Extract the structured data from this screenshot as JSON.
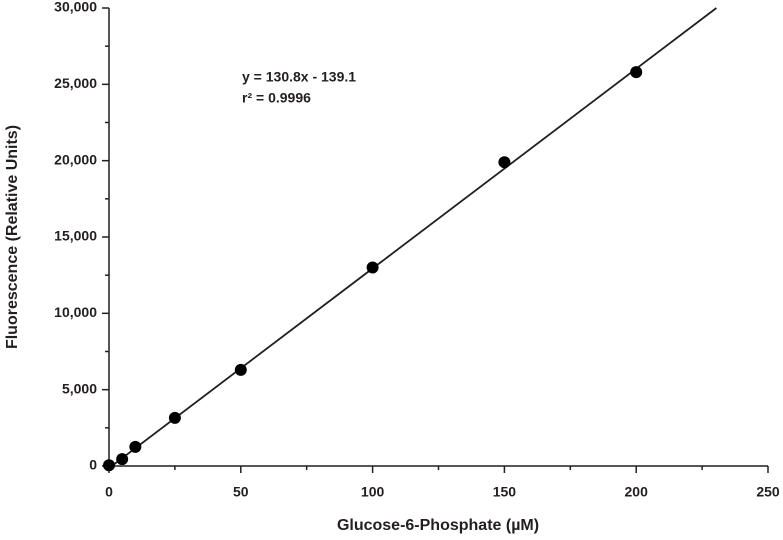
{
  "chart_data": {
    "type": "scatter",
    "x_label": "Glucose-6-Phosphate (µM)",
    "y_label": "Fluorescence (Relative Units)",
    "annotations": [
      "y = 130.8x - 139.1",
      "r² = 0.9996"
    ],
    "x": [
      0,
      5,
      10,
      25,
      50,
      100,
      150,
      200
    ],
    "values": [
      50,
      450,
      1250,
      3150,
      6300,
      13000,
      19900,
      25800
    ],
    "color": "#000000",
    "fit": {
      "slope": 130.8,
      "intercept": -139.1
    },
    "xlim": [
      0,
      250
    ],
    "xticks": [
      0,
      50,
      100,
      150,
      200,
      250
    ],
    "ylim": [
      0,
      30000
    ],
    "yticks": [
      0,
      {
        "value": 5000,
        "label": "5,000"
      },
      {
        "value": 10000,
        "label": "10,000"
      },
      {
        "value": 15000,
        "label": "15,000"
      },
      {
        "value": 20000,
        "label": "20,000"
      },
      {
        "value": 25000,
        "label": "25,000"
      },
      {
        "value": 30000,
        "label": "30,000"
      }
    ],
    "grid": false
  }
}
